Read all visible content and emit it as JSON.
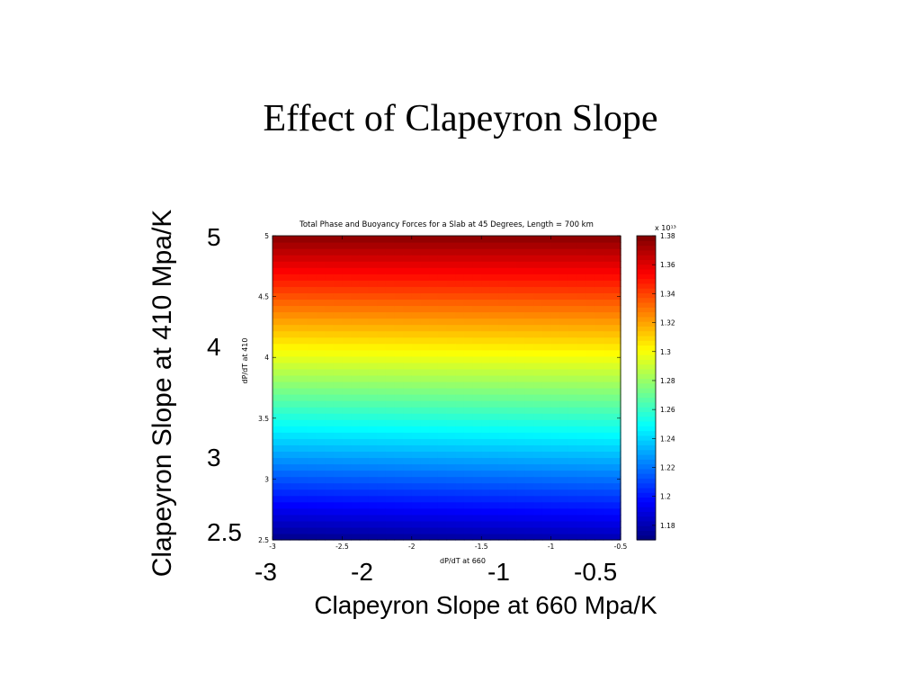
{
  "slide": {
    "title": "Effect of Clapeyron Slope",
    "ylabel": "Clapeyron Slope at 410 Mpa/K",
    "xlabel": "Clapeyron Slope at 660 Mpa/K",
    "y_ticks": [
      "5",
      "4",
      "3",
      "2.5"
    ],
    "x_ticks": [
      "-3",
      "-2",
      "-1",
      "-0.5"
    ]
  },
  "chart_data": {
    "type": "heatmap",
    "title": "Total Phase and Buoyancy Forces for a Slab at 45 Degrees, Length = 700 km",
    "xlabel": "dP/dT at 660",
    "ylabel": "dP/dT at 410",
    "xlim": [
      -3,
      -0.5
    ],
    "ylim": [
      2.5,
      5
    ],
    "x_ticks": [
      -3,
      -2.5,
      -2,
      -1.5,
      -1,
      -0.5
    ],
    "x_tick_labels": [
      "-3",
      "-2.5",
      "-2",
      "-1.5",
      "-1",
      "-0.5"
    ],
    "y_ticks": [
      2.5,
      3,
      3.5,
      4,
      4.5,
      5
    ],
    "y_tick_labels": [
      "2.5",
      "3",
      "3.5",
      "4",
      "4.5",
      "5"
    ],
    "colorbar": {
      "multiplier": "x 10¹³",
      "min": 1.17,
      "max": 1.38,
      "ticks": [
        1.18,
        1.2,
        1.22,
        1.24,
        1.26,
        1.28,
        1.3,
        1.32,
        1.34,
        1.36,
        1.38
      ],
      "tick_labels": [
        "1.18",
        "1.2",
        "1.22",
        "1.24",
        "1.26",
        "1.28",
        "1.3",
        "1.32",
        "1.34",
        "1.36",
        "1.38"
      ],
      "colormap": "jet"
    },
    "field": {
      "description_of_values": "z increases with dP/dT at 410 and slightly with dP/dT at 660",
      "corners": {
        "x_-3_y_2.5": 1.172,
        "x_-0.5_y_2.5": 1.18,
        "x_-3_y_5": 1.378,
        "x_-0.5_y_5": 1.378
      }
    }
  }
}
